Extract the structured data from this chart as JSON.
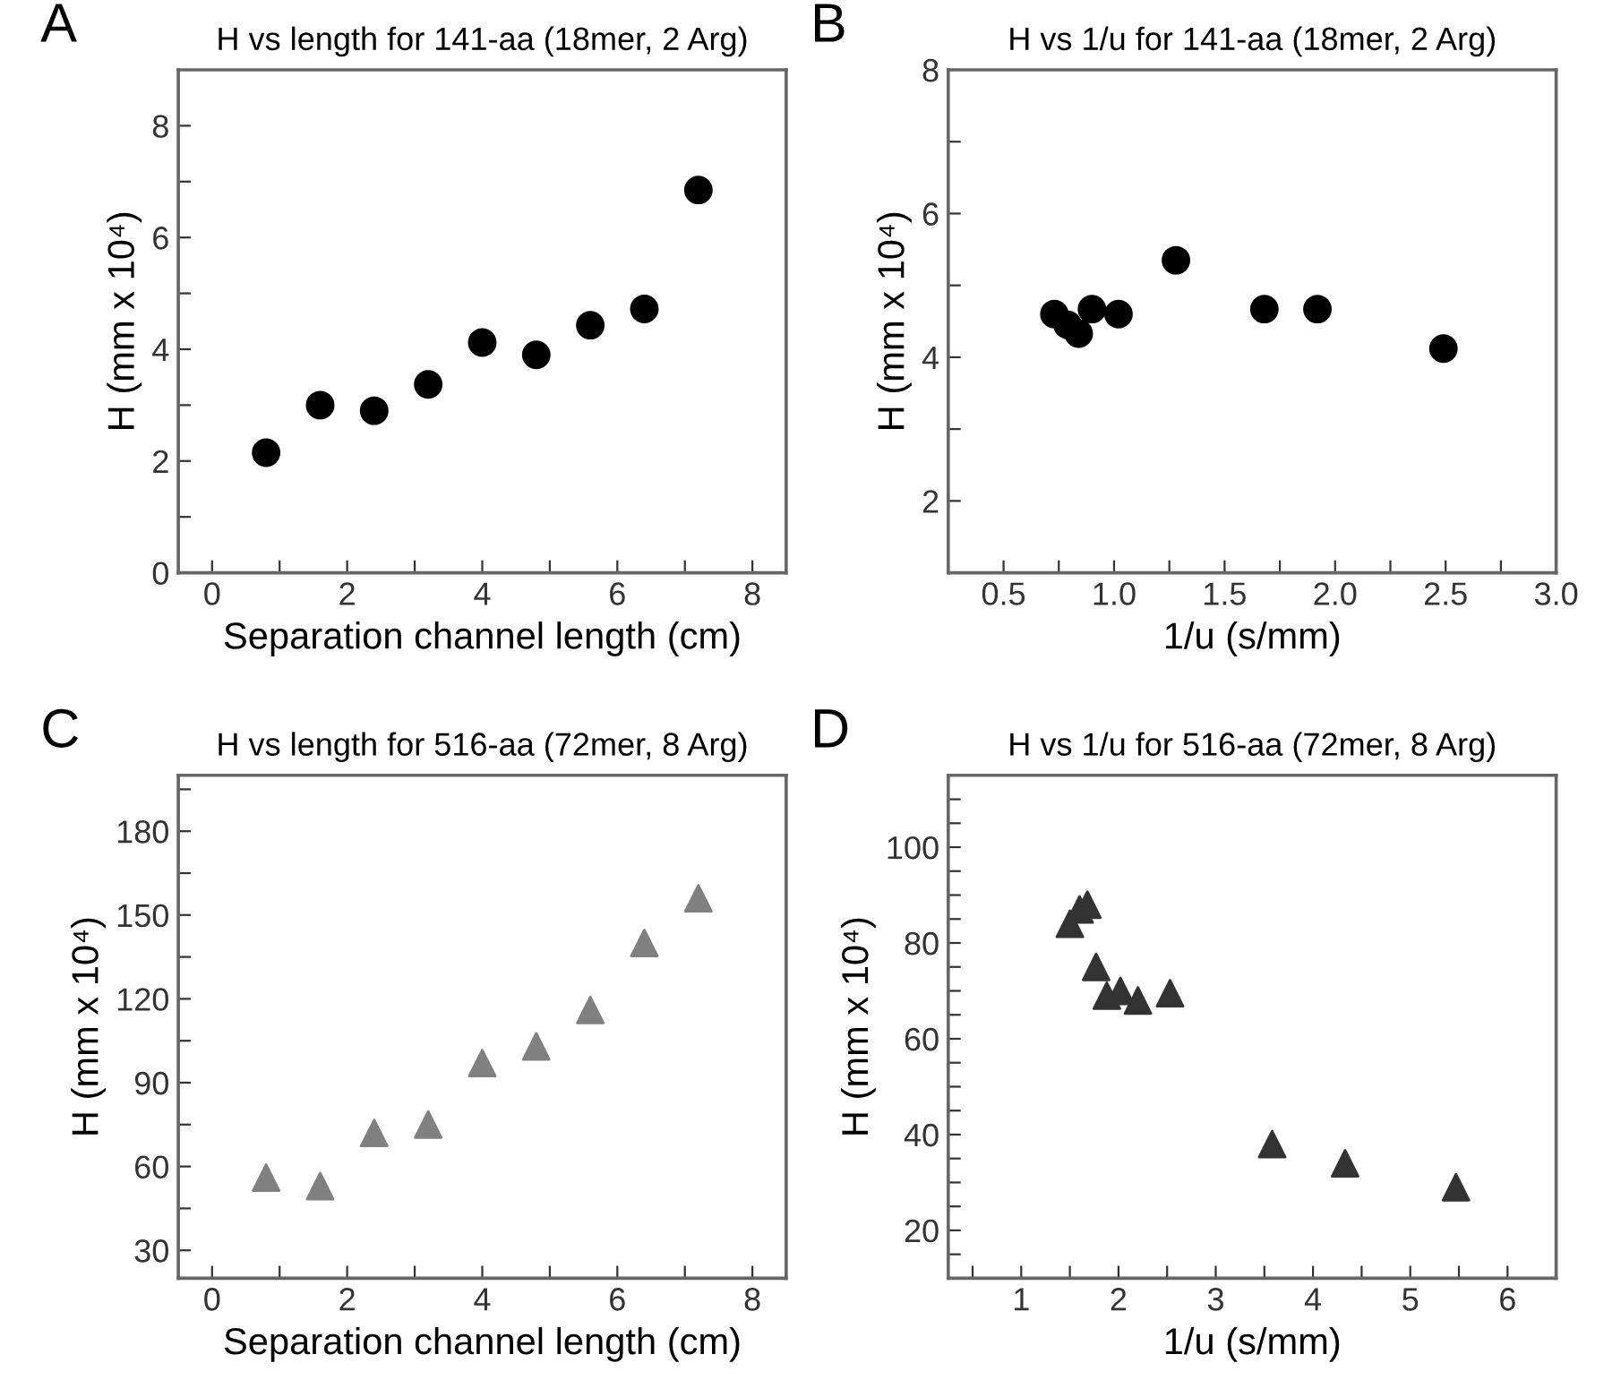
{
  "chart_data": [
    {
      "type": "scatter",
      "title": "H vs length for 141-aa (18mer, 2 Arg)",
      "xlabel": "Separation channel length (cm)",
      "ylabel": "H (mm x 10⁴)",
      "annotations": [
        "A"
      ],
      "marker": "circle",
      "series": [
        {
          "color": "#000000",
          "x": [
            0.8,
            1.6,
            2.4,
            3.2,
            4.0,
            4.8,
            5.6,
            6.4,
            7.2
          ],
          "values": [
            2.15,
            3.0,
            2.9,
            3.37,
            4.12,
            3.9,
            4.43,
            4.72,
            6.85
          ]
        }
      ],
      "xlim": [
        -0.5,
        8.5
      ],
      "ylim": [
        0,
        9
      ],
      "xticks": [
        0,
        {
          "value": 1,
          "label": null
        },
        2,
        {
          "value": 3,
          "label": null
        },
        4,
        {
          "value": 5,
          "label": null
        },
        6,
        {
          "value": 7,
          "label": null
        },
        8
      ],
      "yticks": [
        0,
        {
          "value": 1,
          "label": null
        },
        2,
        {
          "value": 3,
          "label": null
        },
        4,
        {
          "value": 5,
          "label": null
        },
        6,
        {
          "value": 7,
          "label": null
        },
        8
      ]
    },
    {
      "type": "scatter",
      "title": "H vs 1/u for 141-aa (18mer, 2 Arg)",
      "xlabel": "1/u (s/mm)",
      "ylabel": "H (mm x 10⁴)",
      "annotations": [
        "B"
      ],
      "marker": "circle",
      "series": [
        {
          "color": "#000000",
          "x": [
            0.73,
            0.79,
            0.84,
            0.9,
            1.02,
            1.28,
            1.68,
            1.92,
            2.49
          ],
          "values": [
            4.6,
            4.45,
            4.33,
            4.67,
            4.6,
            5.35,
            4.67,
            4.67,
            4.12
          ]
        }
      ],
      "xlim": [
        0.25,
        3.0
      ],
      "ylim": [
        1,
        8
      ],
      "xticks": [
        {
          "value": 0.5,
          "label": "0.5"
        },
        {
          "value": 0.75,
          "label": null
        },
        {
          "value": 1.0,
          "label": "1.0"
        },
        {
          "value": 1.25,
          "label": null
        },
        {
          "value": 1.5,
          "label": "1.5"
        },
        {
          "value": 1.75,
          "label": null
        },
        {
          "value": 2.0,
          "label": "2.0"
        },
        {
          "value": 2.25,
          "label": null
        },
        {
          "value": 2.5,
          "label": "2.5"
        },
        {
          "value": 2.75,
          "label": null
        },
        {
          "value": 3.0,
          "label": "3.0"
        }
      ],
      "yticks": [
        2,
        {
          "value": 3,
          "label": null
        },
        4,
        {
          "value": 5,
          "label": null
        },
        6,
        {
          "value": 7,
          "label": null
        },
        8
      ]
    },
    {
      "type": "scatter",
      "title": "H vs length for 516-aa (72mer, 8 Arg)",
      "xlabel": "Separation channel length (cm)",
      "ylabel": "H (mm x 10⁴)",
      "annotations": [
        "C"
      ],
      "marker": "triangle",
      "series": [
        {
          "color": "#808080",
          "x": [
            0.8,
            1.6,
            2.4,
            3.2,
            4.0,
            4.8,
            5.6,
            6.4,
            7.2
          ],
          "values": [
            56,
            53,
            72,
            75,
            97,
            103,
            116,
            140,
            156
          ]
        }
      ],
      "xlim": [
        -0.5,
        8.5
      ],
      "ylim": [
        20,
        200
      ],
      "xticks": [
        0,
        {
          "value": 1,
          "label": null
        },
        2,
        {
          "value": 3,
          "label": null
        },
        4,
        {
          "value": 5,
          "label": null
        },
        6,
        {
          "value": 7,
          "label": null
        },
        8
      ],
      "yticks": [
        30,
        {
          "value": 45,
          "label": null
        },
        60,
        {
          "value": 75,
          "label": null
        },
        90,
        {
          "value": 105,
          "label": null
        },
        120,
        {
          "value": 135,
          "label": null
        },
        150,
        {
          "value": 165,
          "label": null
        },
        180,
        {
          "value": 195,
          "label": null
        }
      ]
    },
    {
      "type": "scatter",
      "title": "H vs 1/u for 516-aa (72mer, 8 Arg)",
      "xlabel": "1/u (s/mm)",
      "ylabel": "H (mm x 10⁴)",
      "annotations": [
        "D"
      ],
      "marker": "triangle",
      "series": [
        {
          "color": "#333333",
          "x": [
            1.5,
            1.6,
            1.68,
            1.77,
            1.88,
            2.02,
            2.2,
            2.53,
            3.58,
            4.33,
            5.47
          ],
          "values": [
            84,
            87,
            88,
            75,
            69,
            70,
            68,
            69.5,
            38,
            34,
            29
          ]
        }
      ],
      "xlim": [
        0.25,
        6.5
      ],
      "ylim": [
        10,
        115
      ],
      "xticks": [
        {
          "value": 0.5,
          "label": null
        },
        1,
        {
          "value": 1.5,
          "label": null
        },
        2,
        {
          "value": 2.5,
          "label": null
        },
        3,
        {
          "value": 3.5,
          "label": null
        },
        4,
        {
          "value": 4.5,
          "label": null
        },
        5,
        {
          "value": 5.5,
          "label": null
        },
        6
      ],
      "yticks": [
        {
          "value": 15,
          "label": null
        },
        20,
        {
          "value": 25,
          "label": null
        },
        {
          "value": 30,
          "label": null
        },
        {
          "value": 35,
          "label": null
        },
        40,
        {
          "value": 45,
          "label": null
        },
        {
          "value": 50,
          "label": null
        },
        {
          "value": 55,
          "label": null
        },
        60,
        {
          "value": 65,
          "label": null
        },
        {
          "value": 70,
          "label": null
        },
        {
          "value": 75,
          "label": null
        },
        80,
        {
          "value": 85,
          "label": null
        },
        {
          "value": 90,
          "label": null
        },
        {
          "value": 95,
          "label": null
        },
        100,
        {
          "value": 105,
          "label": null
        },
        {
          "value": 110,
          "label": null
        }
      ]
    }
  ]
}
